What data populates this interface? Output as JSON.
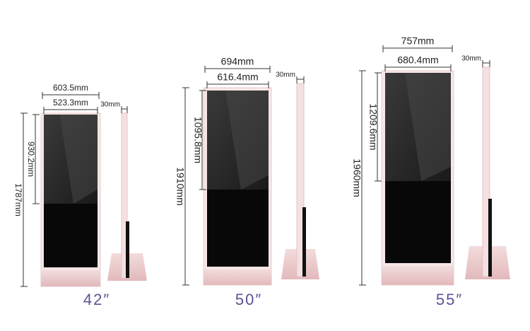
{
  "products": [
    {
      "size_label": "42″",
      "overall_width": "603.5mm",
      "screen_width": "523.3mm",
      "depth": "30mm",
      "screen_height": "930.2mm",
      "overall_height": "1787mm"
    },
    {
      "size_label": "50″",
      "overall_width": "694mm",
      "screen_width": "616.4mm",
      "depth": "30mm",
      "screen_height": "1095.8mm",
      "overall_height": "1910mm"
    },
    {
      "size_label": "55″",
      "overall_width": "757mm",
      "screen_width": "680.4mm",
      "depth": "30mm",
      "screen_height": "1209.6mm",
      "overall_height": "1960mm"
    }
  ]
}
